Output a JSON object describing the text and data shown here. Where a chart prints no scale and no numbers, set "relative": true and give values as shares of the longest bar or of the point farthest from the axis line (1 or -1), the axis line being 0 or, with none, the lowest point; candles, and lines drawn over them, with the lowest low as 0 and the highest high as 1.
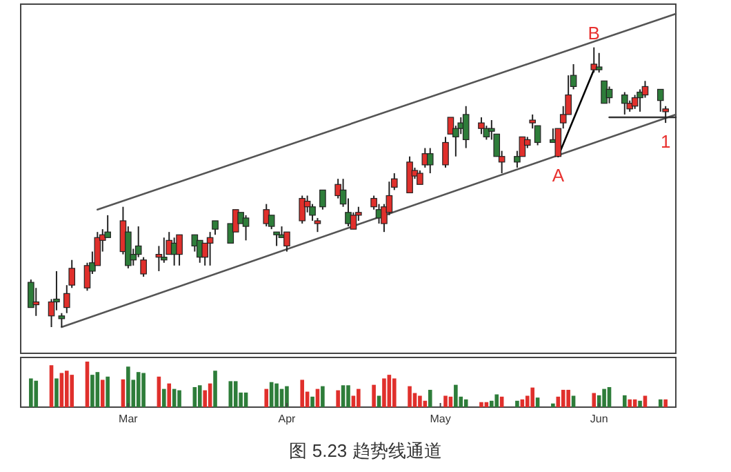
{
  "chart_data": [
    {
      "type": "candlestick",
      "relative": true,
      "xlim": [
        "--02-08",
        "--06-16"
      ],
      "x": [
        "--02-10",
        "--02-11",
        "--02-14",
        "--02-15",
        "--02-16",
        "--02-17",
        "--02-18",
        "--02-21",
        "--02-22",
        "--02-23",
        "--02-24",
        "--02-25",
        "--02-28",
        "--03-01",
        "--03-02",
        "--03-03",
        "--03-04",
        "--03-07",
        "--03-08",
        "--03-09",
        "--03-10",
        "--03-11",
        "--03-14",
        "--03-15",
        "--03-16",
        "--03-17",
        "--03-18",
        "--03-21",
        "--03-22",
        "--03-23",
        "--03-24",
        "--03-28",
        "--03-29",
        "--03-30",
        "--03-31",
        "--04-01",
        "--04-04",
        "--04-05",
        "--04-06",
        "--04-07",
        "--04-08",
        "--04-11",
        "--04-12",
        "--04-13",
        "--04-14",
        "--04-15",
        "--04-18",
        "--04-19",
        "--04-20",
        "--04-21",
        "--04-22",
        "--04-25",
        "--04-26",
        "--04-27",
        "--04-28",
        "--04-29",
        "--05-02",
        "--05-03",
        "--05-04",
        "--05-05",
        "--05-06",
        "--05-09",
        "--05-10",
        "--05-11",
        "--05-12",
        "--05-13",
        "--05-16",
        "--05-17",
        "--05-18",
        "--05-19",
        "--05-20",
        "--05-23",
        "--05-24",
        "--05-25",
        "--05-26",
        "--05-27",
        "--05-31",
        "--06-01",
        "--06-02",
        "--06-03",
        "--06-06",
        "--06-07",
        "--06-08",
        "--06-09",
        "--06-10",
        "--06-13",
        "--06-14"
      ],
      "ohlc": [
        [
          0.16,
          0.17,
          0.07,
          0.07
        ],
        [
          0.08,
          0.14,
          0.04,
          0.09
        ],
        [
          0.04,
          0.1,
          0,
          0.09
        ],
        [
          0.1,
          0.2,
          0.06,
          0.09
        ],
        [
          0.04,
          0.05,
          0,
          0.03
        ],
        [
          0.07,
          0.15,
          0.05,
          0.12
        ],
        [
          0.15,
          0.24,
          0.14,
          0.21
        ],
        [
          0.14,
          0.23,
          0.13,
          0.22
        ],
        [
          0.23,
          0.27,
          0.19,
          0.2
        ],
        [
          0.22,
          0.34,
          0.22,
          0.32
        ],
        [
          0.31,
          0.35,
          0.27,
          0.33
        ],
        [
          0.34,
          0.4,
          0.32,
          0.32
        ],
        [
          0.27,
          0.43,
          0.26,
          0.38
        ],
        [
          0.34,
          0.36,
          0.21,
          0.22
        ],
        [
          0.26,
          0.28,
          0.22,
          0.24
        ],
        [
          0.29,
          0.36,
          0.25,
          0.26
        ],
        [
          0.19,
          0.25,
          0.18,
          0.24
        ],
        [
          0.25,
          0.29,
          0.2,
          0.26
        ],
        [
          0.25,
          0.32,
          0.23,
          0.24
        ],
        [
          0.26,
          0.34,
          0.26,
          0.31
        ],
        [
          0.3,
          0.32,
          0.22,
          0.26
        ],
        [
          0.26,
          0.33,
          0.22,
          0.33
        ],
        [
          0.33,
          0.33,
          0.27,
          0.29
        ],
        [
          0.31,
          0.31,
          0.23,
          0.25
        ],
        [
          0.25,
          0.3,
          0.22,
          0.3
        ],
        [
          0.3,
          0.34,
          0.22,
          0.32
        ],
        [
          0.38,
          0.38,
          0.33,
          0.35
        ],
        [
          0.37,
          0.37,
          0.3,
          0.3
        ],
        [
          0.34,
          0.42,
          0.34,
          0.42
        ],
        [
          0.41,
          0.41,
          0.37,
          0.37
        ],
        [
          0.39,
          0.4,
          0.31,
          0.36
        ],
        [
          0.37,
          0.44,
          0.36,
          0.42
        ],
        [
          0.4,
          0.4,
          0.35,
          0.36
        ],
        [
          0.34,
          0.34,
          0.29,
          0.33
        ],
        [
          0.33,
          0.36,
          0.32,
          0.32
        ],
        [
          0.29,
          0.34,
          0.27,
          0.34
        ],
        [
          0.38,
          0.47,
          0.37,
          0.46
        ],
        [
          0.43,
          0.47,
          0.41,
          0.45
        ],
        [
          0.43,
          0.44,
          0.38,
          0.4
        ],
        [
          0.37,
          0.39,
          0.34,
          0.38
        ],
        [
          0.49,
          0.49,
          0.42,
          0.43
        ],
        [
          0.47,
          0.53,
          0.46,
          0.51
        ],
        [
          0.49,
          0.53,
          0.43,
          0.44
        ],
        [
          0.41,
          0.46,
          0.36,
          0.37
        ],
        [
          0.35,
          0.41,
          0.35,
          0.4
        ],
        [
          0.4,
          0.43,
          0.38,
          0.41
        ],
        [
          0.43,
          0.47,
          0.42,
          0.46
        ],
        [
          0.42,
          0.44,
          0.37,
          0.39
        ],
        [
          0.37,
          0.44,
          0.34,
          0.43
        ],
        [
          0.41,
          0.52,
          0.4,
          0.47
        ],
        [
          0.5,
          0.55,
          0.49,
          0.53
        ],
        [
          0.48,
          0.61,
          0.48,
          0.59
        ],
        [
          0.54,
          0.57,
          0.53,
          0.56
        ],
        [
          0.51,
          0.56,
          0.51,
          0.55
        ],
        [
          0.58,
          0.64,
          0.57,
          0.62
        ],
        [
          0.62,
          0.64,
          0.55,
          0.58
        ],
        [
          0.58,
          0.68,
          0.57,
          0.66
        ],
        [
          0.69,
          0.75,
          0.69,
          0.75
        ],
        [
          0.71,
          0.72,
          0.61,
          0.68
        ],
        [
          0.73,
          0.75,
          0.69,
          0.71
        ],
        [
          0.76,
          0.79,
          0.64,
          0.67
        ],
        [
          0.71,
          0.75,
          0.69,
          0.73
        ],
        [
          0.71,
          0.72,
          0.67,
          0.68
        ],
        [
          0.71,
          0.74,
          0.67,
          0.7
        ],
        [
          0.69,
          0.69,
          0.61,
          0.61
        ],
        [
          0.59,
          0.63,
          0.55,
          0.61
        ],
        [
          0.61,
          0.63,
          0.57,
          0.59
        ],
        [
          0.61,
          0.68,
          0.61,
          0.68
        ],
        [
          0.65,
          0.68,
          0.64,
          0.67
        ],
        [
          0.73,
          0.76,
          0.71,
          0.74
        ],
        [
          0.72,
          0.72,
          0.65,
          0.66
        ],
        [
          0.67,
          0.71,
          0.66,
          0.66
        ],
        [
          0.61,
          0.71,
          0.61,
          0.71
        ],
        [
          0.73,
          0.79,
          0.71,
          0.76
        ],
        [
          0.76,
          0.9,
          0.76,
          0.83
        ],
        [
          0.9,
          0.94,
          0.85,
          0.86
        ],
        [
          0.92,
          1,
          0.91,
          0.94
        ],
        [
          0.93,
          0.98,
          0.91,
          0.92
        ],
        [
          0.88,
          0.88,
          0.8,
          0.8
        ],
        [
          0.85,
          0.86,
          0.8,
          0.82
        ],
        [
          0.83,
          0.84,
          0.76,
          0.8
        ],
        [
          0.78,
          0.81,
          0.77,
          0.8
        ],
        [
          0.79,
          0.83,
          0.78,
          0.82
        ],
        [
          0.84,
          0.85,
          0.77,
          0.82
        ],
        [
          0.83,
          0.88,
          0.82,
          0.86
        ],
        [
          0.85,
          0.85,
          0.77,
          0.81
        ],
        [
          0.77,
          0.79,
          0.73,
          0.78
        ]
      ],
      "colors": [
        "#2e7d3a",
        "#e0302c",
        "#e0302c",
        "#2e7d3a",
        "#2e7d3a",
        "#e0302c",
        "#e0302c",
        "#e0302c",
        "#2e7d3a",
        "#e0302c",
        "#e0302c",
        "#2e7d3a",
        "#e0302c",
        "#2e7d3a",
        "#2e7d3a",
        "#2e7d3a",
        "#e0302c",
        "#e0302c",
        "#2e7d3a",
        "#e0302c",
        "#2e7d3a",
        "#e0302c",
        "#2e7d3a",
        "#2e7d3a",
        "#e0302c",
        "#e0302c",
        "#2e7d3a",
        "#2e7d3a",
        "#e0302c",
        "#2e7d3a",
        "#2e7d3a",
        "#e0302c",
        "#2e7d3a",
        "#2e7d3a",
        "#2e7d3a",
        "#e0302c",
        "#e0302c",
        "#e0302c",
        "#2e7d3a",
        "#e0302c",
        "#2e7d3a",
        "#e0302c",
        "#2e7d3a",
        "#2e7d3a",
        "#e0302c",
        "#e0302c",
        "#e0302c",
        "#2e7d3a",
        "#e0302c",
        "#e0302c",
        "#e0302c",
        "#e0302c",
        "#e0302c",
        "#e0302c",
        "#e0302c",
        "#2e7d3a",
        "#e0302c",
        "#e0302c",
        "#2e7d3a",
        "#2e7d3a",
        "#2e7d3a",
        "#e0302c",
        "#2e7d3a",
        "#2e7d3a",
        "#2e7d3a",
        "#e0302c",
        "#2e7d3a",
        "#e0302c",
        "#e0302c",
        "#e0302c",
        "#2e7d3a",
        "#2e7d3a",
        "#e0302c",
        "#e0302c",
        "#e0302c",
        "#2e7d3a",
        "#e0302c",
        "#2e7d3a",
        "#2e7d3a",
        "#2e7d3a",
        "#2e7d3a",
        "#e0302c",
        "#e0302c",
        "#2e7d3a",
        "#e0302c",
        "#2e7d3a",
        "#e0302c"
      ],
      "series": [
        {
          "type": "line",
          "color": "#555555",
          "x": [
            "--02-23",
            "--06-16"
          ],
          "values": [
            0.42,
            1.12
          ]
        },
        {
          "type": "line",
          "color": "#555555",
          "x": [
            "--02-16",
            "--06-16"
          ],
          "values": [
            0,
            0.76
          ]
        },
        {
          "type": "line",
          "color": "#000000",
          "x": [
            "--05-24",
            "--05-31"
          ],
          "values": [
            0.61,
            0.92
          ]
        },
        {
          "type": "line",
          "color": "#333333",
          "x": [
            "--06-03",
            "--06-16"
          ],
          "values": [
            0.75,
            0.75
          ]
        }
      ],
      "annotations": [
        {
          "text": "B",
          "x": "--05-31",
          "y": 1
        },
        {
          "text": "A",
          "x": "--05-24",
          "y": 0.61
        },
        {
          "text": "1",
          "x": "--06-14",
          "y": 0.73
        }
      ]
    },
    {
      "type": "bar",
      "relative": true,
      "xlim": [
        "--02-08",
        "--06-16"
      ],
      "xticks": [
        {
          "value": "--03-01",
          "label": "Mar"
        },
        {
          "value": "--04-01",
          "label": "Apr"
        },
        {
          "value": "--05-01",
          "label": "May"
        },
        {
          "value": "--06-01",
          "label": "Jun"
        }
      ],
      "x": [
        "--02-10",
        "--02-11",
        "--02-14",
        "--02-15",
        "--02-16",
        "--02-17",
        "--02-18",
        "--02-21",
        "--02-22",
        "--02-23",
        "--02-24",
        "--02-25",
        "--02-28",
        "--03-01",
        "--03-02",
        "--03-03",
        "--03-04",
        "--03-07",
        "--03-08",
        "--03-09",
        "--03-10",
        "--03-11",
        "--03-14",
        "--03-15",
        "--03-16",
        "--03-17",
        "--03-18",
        "--03-21",
        "--03-22",
        "--03-23",
        "--03-24",
        "--03-28",
        "--03-29",
        "--03-30",
        "--03-31",
        "--04-01",
        "--04-04",
        "--04-05",
        "--04-06",
        "--04-07",
        "--04-08",
        "--04-11",
        "--04-12",
        "--04-13",
        "--04-14",
        "--04-15",
        "--04-18",
        "--04-19",
        "--04-20",
        "--04-21",
        "--04-22",
        "--04-25",
        "--04-26",
        "--04-27",
        "--04-28",
        "--04-29",
        "--05-02",
        "--05-03",
        "--05-04",
        "--05-05",
        "--05-06",
        "--05-09",
        "--05-10",
        "--05-11",
        "--05-12",
        "--05-13",
        "--05-16",
        "--05-17",
        "--05-18",
        "--05-19",
        "--05-20",
        "--05-23",
        "--05-24",
        "--05-25",
        "--05-26",
        "--05-27",
        "--05-31",
        "--06-01",
        "--06-02",
        "--06-03",
        "--06-06",
        "--06-07",
        "--06-08",
        "--06-09",
        "--06-10",
        "--06-13",
        "--06-14"
      ],
      "values": [
        0.63,
        0.58,
        0.92,
        0.63,
        0.75,
        0.8,
        0.71,
        1,
        0.71,
        0.77,
        0.6,
        0.67,
        0.61,
        0.89,
        0.6,
        0.77,
        0.75,
        0.67,
        0.4,
        0.52,
        0.4,
        0.37,
        0.44,
        0.48,
        0.37,
        0.52,
        0.8,
        0.57,
        0.57,
        0.32,
        0.32,
        0.4,
        0.55,
        0.52,
        0.4,
        0.46,
        0.6,
        0.34,
        0.23,
        0.4,
        0.46,
        0.37,
        0.48,
        0.48,
        0.25,
        0.4,
        0.49,
        0.25,
        0.63,
        0.71,
        0.63,
        0.46,
        0.31,
        0.25,
        0.14,
        0.38,
        0.25,
        0.23,
        0.49,
        0.23,
        0.17,
        0.11,
        0.11,
        0.14,
        0.28,
        0.23,
        0.14,
        0.17,
        0.25,
        0.43,
        0.21,
        0.08,
        0.23,
        0.38,
        0.38,
        0.25,
        0.31,
        0.26,
        0.4,
        0.44,
        0.26,
        0.17,
        0.17,
        0.14,
        0.25,
        0.17,
        0.17
      ],
      "colors": [
        "#2e7d3a",
        "#2e7d3a",
        "#e0302c",
        "#2e7d3a",
        "#e0302c",
        "#e0302c",
        "#e0302c",
        "#e0302c",
        "#2e7d3a",
        "#2e7d3a",
        "#e0302c",
        "#2e7d3a",
        "#e0302c",
        "#2e7d3a",
        "#2e7d3a",
        "#2e7d3a",
        "#2e7d3a",
        "#e0302c",
        "#2e7d3a",
        "#e0302c",
        "#2e7d3a",
        "#2e7d3a",
        "#2e7d3a",
        "#2e7d3a",
        "#e0302c",
        "#e0302c",
        "#2e7d3a",
        "#2e7d3a",
        "#2e7d3a",
        "#2e7d3a",
        "#2e7d3a",
        "#e0302c",
        "#2e7d3a",
        "#2e7d3a",
        "#2e7d3a",
        "#2e7d3a",
        "#e0302c",
        "#e0302c",
        "#2e7d3a",
        "#e0302c",
        "#2e7d3a",
        "#e0302c",
        "#2e7d3a",
        "#2e7d3a",
        "#e0302c",
        "#e0302c",
        "#e0302c",
        "#2e7d3a",
        "#e0302c",
        "#e0302c",
        "#e0302c",
        "#e0302c",
        "#e0302c",
        "#e0302c",
        "#e0302c",
        "#2e7d3a",
        "#e0302c",
        "#e0302c",
        "#2e7d3a",
        "#2e7d3a",
        "#2e7d3a",
        "#e0302c",
        "#e0302c",
        "#2e7d3a",
        "#2e7d3a",
        "#e0302c",
        "#2e7d3a",
        "#e0302c",
        "#e0302c",
        "#e0302c",
        "#2e7d3a",
        "#2e7d3a",
        "#e0302c",
        "#e0302c",
        "#e0302c",
        "#2e7d3a",
        "#e0302c",
        "#2e7d3a",
        "#2e7d3a",
        "#2e7d3a",
        "#2e7d3a",
        "#e0302c",
        "#e0302c",
        "#2e7d3a",
        "#e0302c",
        "#2e7d3a",
        "#e0302c"
      ],
      "annotations": [
        "图 5.23 趋势线通道"
      ]
    }
  ]
}
